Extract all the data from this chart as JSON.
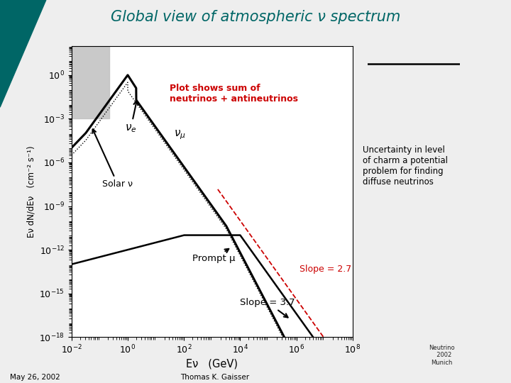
{
  "title": "Global view of atmospheric ν spectrum",
  "title_color": "#006666",
  "xlabel": "Eν   (GeV)",
  "ylabel": "Eν dN/dEν   (cm⁻² s⁻¹)",
  "xlim_log": [
    -2,
    8
  ],
  "ylim_log": [
    -18,
    2
  ],
  "annotation_plot_shows": "Plot shows sum of\nneutrinos + antineutrinos",
  "annotation_plot_shows_color": "#cc0000",
  "annotation_solar": "Solar ν",
  "annotation_prompt": "Prompt μ",
  "annotation_slope37": "Slope = 3.7",
  "annotation_slope27": "Slope = 2.7",
  "annotation_slope27_color": "#cc0000",
  "annotation_uncertainty": "Uncertainty in level\nof charm a potential\nproblem for finding\ndiffuse neutrinos",
  "footer_left": "May 26, 2002",
  "footer_center": "Thomas K. Gaisser",
  "bg_color": "#eeeeee",
  "plot_bg": "#ffffff",
  "line_main": "#000000",
  "line_red": "#cc0000",
  "solar_rect": "#c0c0c0",
  "teal": "#006666"
}
